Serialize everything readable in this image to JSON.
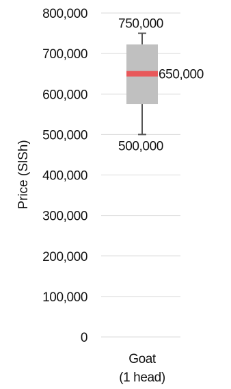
{
  "chart_data": {
    "type": "box",
    "ylabel": "Price (SlSh)",
    "ylim": [
      0,
      800000
    ],
    "yticks": [
      0,
      100000,
      200000,
      300000,
      400000,
      500000,
      600000,
      700000,
      800000
    ],
    "ytick_labels": [
      "0",
      "100,000",
      "200,000",
      "300,000",
      "400,000",
      "500,000",
      "600,000",
      "700,000",
      "800,000"
    ],
    "grid": true,
    "categories": [
      "Goat (1 head)"
    ],
    "category_lines": [
      "Goat",
      "(1 head)"
    ],
    "boxes": [
      {
        "category": "Goat (1 head)",
        "min": 500000,
        "q1": 575000,
        "median": 650000,
        "q3": 722500,
        "max": 750000
      }
    ],
    "annotations": [
      {
        "text": "750,000",
        "value": 750000,
        "position": "above-max"
      },
      {
        "text": "650,000",
        "value": 650000,
        "position": "right-of-median"
      },
      {
        "text": "500,000",
        "value": 500000,
        "position": "below-min"
      }
    ],
    "colors": {
      "box": "#c0c0c0",
      "median": "#e8585a",
      "whisker": "#555555",
      "grid": "#d9d9d9"
    }
  }
}
